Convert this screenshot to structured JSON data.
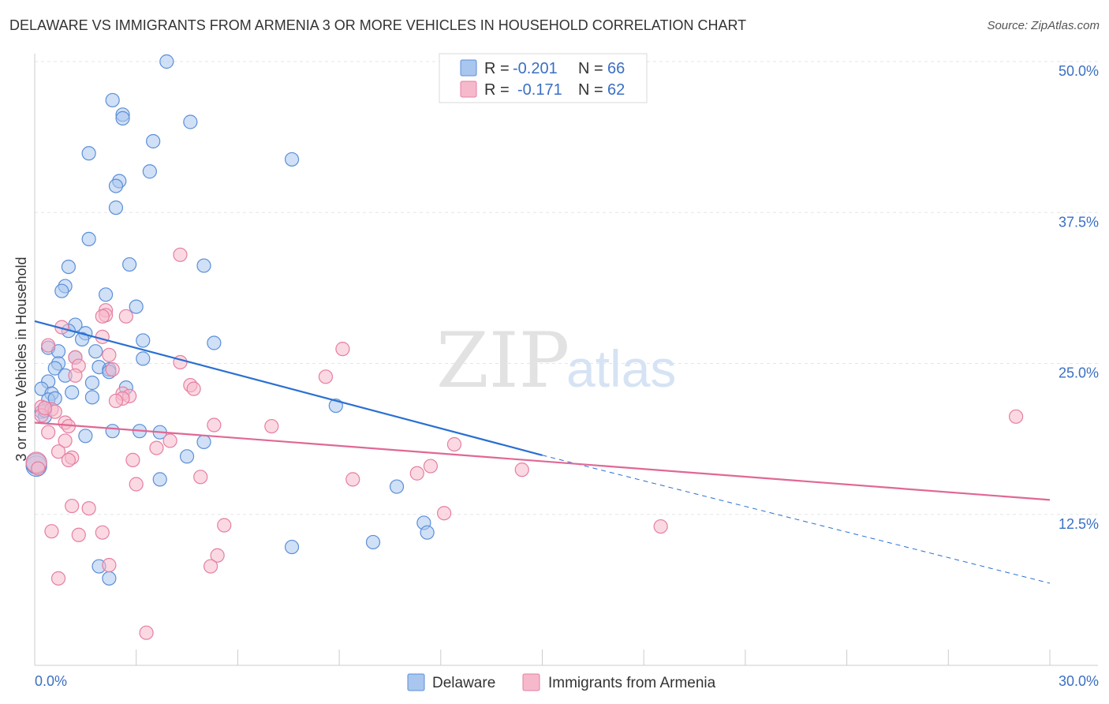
{
  "title": "DELAWARE VS IMMIGRANTS FROM ARMENIA 3 OR MORE VEHICLES IN HOUSEHOLD CORRELATION CHART",
  "source": "Source: ZipAtlas.com",
  "watermark": {
    "zip": "ZIP",
    "atlas": "atlas"
  },
  "colors": {
    "delaware_fill": "#a9c6ee",
    "delaware_stroke": "#5b8fd8",
    "delaware_line": "#2a6fd1",
    "armenia_fill": "#f6b9cc",
    "armenia_stroke": "#e77ea0",
    "armenia_line": "#e06894",
    "tick_text": "#3a6fc4",
    "grid": "#e6e6e6"
  },
  "legend": {
    "rows": [
      {
        "r_label": "R =",
        "r_value": "-0.201",
        "n_label": "N =",
        "n_value": "66"
      },
      {
        "r_label": "R =",
        "r_value": "-0.171",
        "n_label": "N =",
        "n_value": "62"
      }
    ]
  },
  "bottom_legend": {
    "delaware": "Delaware",
    "armenia": "Immigrants from Armenia"
  },
  "chart_data": {
    "type": "scatter",
    "xlabel": "",
    "ylabel": "3 or more Vehicles in Household",
    "xlim": [
      0,
      30
    ],
    "ylim": [
      0,
      50
    ],
    "x_tick_labels": [
      "0.0%",
      "30.0%"
    ],
    "y_ticks": [
      12.5,
      25.0,
      37.5,
      50.0
    ],
    "y_tick_labels": [
      "12.5%",
      "25.0%",
      "37.5%",
      "50.0%"
    ],
    "grid": true,
    "legend_position": "top-center",
    "series": [
      {
        "name": "Delaware",
        "r": -0.201,
        "n": 66,
        "trend": {
          "x0": 0,
          "y0": 28.5,
          "x1": 15,
          "y1": 17.4,
          "dashed_to_x": 30,
          "dashed_to_y": 6.8
        },
        "points": [
          [
            3.9,
            50.0
          ],
          [
            2.3,
            46.8
          ],
          [
            2.6,
            45.6
          ],
          [
            2.6,
            45.3
          ],
          [
            4.6,
            45.0
          ],
          [
            3.5,
            43.4
          ],
          [
            1.6,
            42.4
          ],
          [
            7.6,
            41.9
          ],
          [
            3.4,
            40.9
          ],
          [
            2.5,
            40.1
          ],
          [
            2.4,
            39.7
          ],
          [
            2.4,
            37.9
          ],
          [
            1.6,
            35.3
          ],
          [
            2.8,
            33.2
          ],
          [
            5.0,
            33.1
          ],
          [
            1.0,
            33.0
          ],
          [
            0.9,
            31.4
          ],
          [
            0.8,
            31.0
          ],
          [
            2.1,
            30.7
          ],
          [
            3.0,
            29.7
          ],
          [
            1.2,
            28.2
          ],
          [
            1.0,
            27.7
          ],
          [
            1.5,
            27.5
          ],
          [
            1.4,
            27.0
          ],
          [
            3.2,
            26.9
          ],
          [
            5.3,
            26.7
          ],
          [
            0.4,
            26.3
          ],
          [
            0.7,
            26.0
          ],
          [
            1.8,
            26.0
          ],
          [
            1.2,
            25.5
          ],
          [
            3.2,
            25.4
          ],
          [
            0.7,
            25.0
          ],
          [
            0.6,
            24.6
          ],
          [
            1.9,
            24.7
          ],
          [
            2.2,
            24.5
          ],
          [
            2.2,
            24.3
          ],
          [
            0.9,
            24.0
          ],
          [
            0.4,
            23.5
          ],
          [
            1.7,
            23.4
          ],
          [
            2.7,
            23.0
          ],
          [
            0.2,
            22.9
          ],
          [
            1.1,
            22.6
          ],
          [
            0.5,
            22.5
          ],
          [
            0.4,
            22.0
          ],
          [
            0.6,
            22.1
          ],
          [
            1.7,
            22.2
          ],
          [
            0.2,
            21.0
          ],
          [
            0.3,
            20.6
          ],
          [
            8.9,
            21.5
          ],
          [
            2.3,
            19.4
          ],
          [
            3.1,
            19.4
          ],
          [
            3.7,
            19.3
          ],
          [
            1.5,
            19.0
          ],
          [
            5.0,
            18.5
          ],
          [
            4.5,
            17.3
          ],
          [
            0.05,
            16.5
          ],
          [
            3.7,
            15.4
          ],
          [
            10.7,
            14.8
          ],
          [
            11.5,
            11.8
          ],
          [
            11.6,
            11.0
          ],
          [
            10.0,
            10.2
          ],
          [
            7.6,
            9.8
          ],
          [
            1.9,
            8.2
          ],
          [
            2.2,
            7.2
          ],
          [
            0.3,
            21.1
          ],
          [
            0.05,
            16.7
          ]
        ]
      },
      {
        "name": "Immigrants from Armenia",
        "r": -0.171,
        "n": 62,
        "trend": {
          "x0": 0,
          "y0": 20.1,
          "x1": 30,
          "y1": 13.7
        },
        "points": [
          [
            4.3,
            34.0
          ],
          [
            2.1,
            29.4
          ],
          [
            2.1,
            29.0
          ],
          [
            2.0,
            28.9
          ],
          [
            2.7,
            28.9
          ],
          [
            0.8,
            28.0
          ],
          [
            2.0,
            27.2
          ],
          [
            0.4,
            26.5
          ],
          [
            9.1,
            26.2
          ],
          [
            1.2,
            25.5
          ],
          [
            2.2,
            25.7
          ],
          [
            4.3,
            25.1
          ],
          [
            1.3,
            24.8
          ],
          [
            2.3,
            24.5
          ],
          [
            1.2,
            24.0
          ],
          [
            8.6,
            23.9
          ],
          [
            4.6,
            23.2
          ],
          [
            4.7,
            22.9
          ],
          [
            2.6,
            22.5
          ],
          [
            2.8,
            22.3
          ],
          [
            2.6,
            22.1
          ],
          [
            2.4,
            21.9
          ],
          [
            0.2,
            21.4
          ],
          [
            0.5,
            21.2
          ],
          [
            0.6,
            21.0
          ],
          [
            0.2,
            20.7
          ],
          [
            0.9,
            20.1
          ],
          [
            1.0,
            19.8
          ],
          [
            5.3,
            19.9
          ],
          [
            7.0,
            19.8
          ],
          [
            0.4,
            19.3
          ],
          [
            0.9,
            18.6
          ],
          [
            4.0,
            18.6
          ],
          [
            12.4,
            18.3
          ],
          [
            0.7,
            17.7
          ],
          [
            1.1,
            17.2
          ],
          [
            1.0,
            17.0
          ],
          [
            2.9,
            17.0
          ],
          [
            3.6,
            18.0
          ],
          [
            14.4,
            16.2
          ],
          [
            11.7,
            16.5
          ],
          [
            11.3,
            15.9
          ],
          [
            4.9,
            15.6
          ],
          [
            9.4,
            15.4
          ],
          [
            3.0,
            15.0
          ],
          [
            1.1,
            13.2
          ],
          [
            1.6,
            13.0
          ],
          [
            12.1,
            12.6
          ],
          [
            5.6,
            11.6
          ],
          [
            18.5,
            11.5
          ],
          [
            0.5,
            11.1
          ],
          [
            2.0,
            11.0
          ],
          [
            1.3,
            10.8
          ],
          [
            5.4,
            9.1
          ],
          [
            2.2,
            8.3
          ],
          [
            5.2,
            8.2
          ],
          [
            0.7,
            7.2
          ],
          [
            3.3,
            2.7
          ],
          [
            0.05,
            16.8
          ],
          [
            0.1,
            16.3
          ],
          [
            29.0,
            20.6
          ],
          [
            0.3,
            21.3
          ]
        ]
      }
    ]
  }
}
